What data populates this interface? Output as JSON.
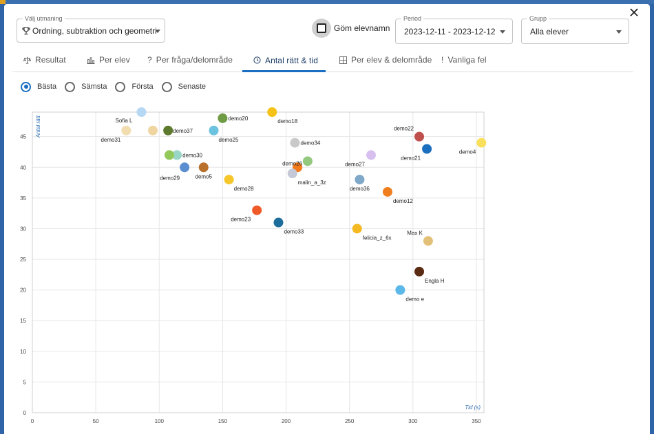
{
  "dialog": {
    "challenge": {
      "label": "Välj utmaning",
      "value": "Ordning, subtraktion och geometri"
    },
    "hide_names": {
      "label": "Göm elevnamn"
    },
    "period": {
      "label": "Period",
      "value": "2023-12-11 - 2023-12-12"
    },
    "group": {
      "label": "Grupp",
      "value": "Alla elever"
    },
    "tabs": [
      {
        "label": "Resultat",
        "icon": "scale-icon"
      },
      {
        "label": "Per elev",
        "icon": "bar-chart-icon"
      },
      {
        "label": "Per fråga/delområde",
        "icon": "question-icon"
      },
      {
        "label": "Antal rätt & tid",
        "icon": "clock-icon",
        "active": true
      },
      {
        "label": "Per elev & delområde",
        "icon": "grid-icon"
      },
      {
        "label": "Vanliga fel",
        "icon": "exclamation-icon"
      }
    ],
    "modes": [
      {
        "label": "Bästa",
        "selected": true
      },
      {
        "label": "Sämsta",
        "selected": false
      },
      {
        "label": "Första",
        "selected": false
      },
      {
        "label": "Senaste",
        "selected": false
      }
    ],
    "accent_color": "#1b6ec2"
  },
  "chart_data": {
    "type": "scatter",
    "xlabel": "Tid (s)",
    "ylabel": "Antal rätt",
    "xlim": [
      0,
      356
    ],
    "ylim": [
      0,
      49
    ],
    "xticks": [
      0,
      50,
      100,
      150,
      200,
      250,
      300,
      350
    ],
    "yticks": [
      0,
      5,
      10,
      15,
      20,
      25,
      30,
      35,
      40,
      45
    ],
    "grid": true,
    "points": [
      {
        "name": "Sofia L",
        "x": 86,
        "y": 49,
        "color": "#b7d8f5"
      },
      {
        "name": "demo31",
        "x": 74,
        "y": 46,
        "color": "#f2ddb0"
      },
      {
        "name": "",
        "x": 95,
        "y": 46,
        "color": "#efd5a0"
      },
      {
        "name": "demo37",
        "x": 107,
        "y": 46,
        "color": "#5d7a2e"
      },
      {
        "name": "demo20",
        "x": 150,
        "y": 48,
        "color": "#6f9b45"
      },
      {
        "name": "demo25",
        "x": 143,
        "y": 46,
        "color": "#6cc3e0"
      },
      {
        "name": "demo18",
        "x": 189,
        "y": 49,
        "color": "#f5c218"
      },
      {
        "name": "demo34",
        "x": 207,
        "y": 44,
        "color": "#c9c9c9"
      },
      {
        "name": "demo30",
        "x": 114,
        "y": 42,
        "color": "#9ad6c8"
      },
      {
        "name": "",
        "x": 108,
        "y": 42,
        "color": "#93c95a"
      },
      {
        "name": "demo29",
        "x": 120,
        "y": 40,
        "color": "#5b8ed0"
      },
      {
        "name": "demo5",
        "x": 135,
        "y": 40,
        "color": "#b8702a"
      },
      {
        "name": "demo28",
        "x": 155,
        "y": 38,
        "color": "#f6c72a"
      },
      {
        "name": "demo26",
        "x": 209,
        "y": 40,
        "color": "#f47a1a"
      },
      {
        "name": "",
        "x": 217,
        "y": 41,
        "color": "#92c97e"
      },
      {
        "name": "malin_a_3z",
        "x": 205,
        "y": 39,
        "color": "#c5c8d6"
      },
      {
        "name": "demo27",
        "x": 267,
        "y": 42,
        "color": "#d7c0f0"
      },
      {
        "name": "demo36",
        "x": 258,
        "y": 38,
        "color": "#7fa8c9"
      },
      {
        "name": "demo12",
        "x": 280,
        "y": 36,
        "color": "#f07e1e"
      },
      {
        "name": "demo22",
        "x": 305,
        "y": 45,
        "color": "#c0504d"
      },
      {
        "name": "demo21",
        "x": 311,
        "y": 43,
        "color": "#1c6fbf"
      },
      {
        "name": "demo4",
        "x": 354,
        "y": 44,
        "color": "#f8df5c"
      },
      {
        "name": "demo23",
        "x": 177,
        "y": 33,
        "color": "#ef5a28"
      },
      {
        "name": "demo33",
        "x": 194,
        "y": 31,
        "color": "#1d6d9c"
      },
      {
        "name": "felicia_z_6x",
        "x": 256,
        "y": 30,
        "color": "#f5b922"
      },
      {
        "name": "Max K",
        "x": 312,
        "y": 28,
        "color": "#e3c078"
      },
      {
        "name": "Engla H",
        "x": 305,
        "y": 23,
        "color": "#5a2a12"
      },
      {
        "name": "demo e",
        "x": 290,
        "y": 20,
        "color": "#5bb8e8"
      }
    ]
  }
}
